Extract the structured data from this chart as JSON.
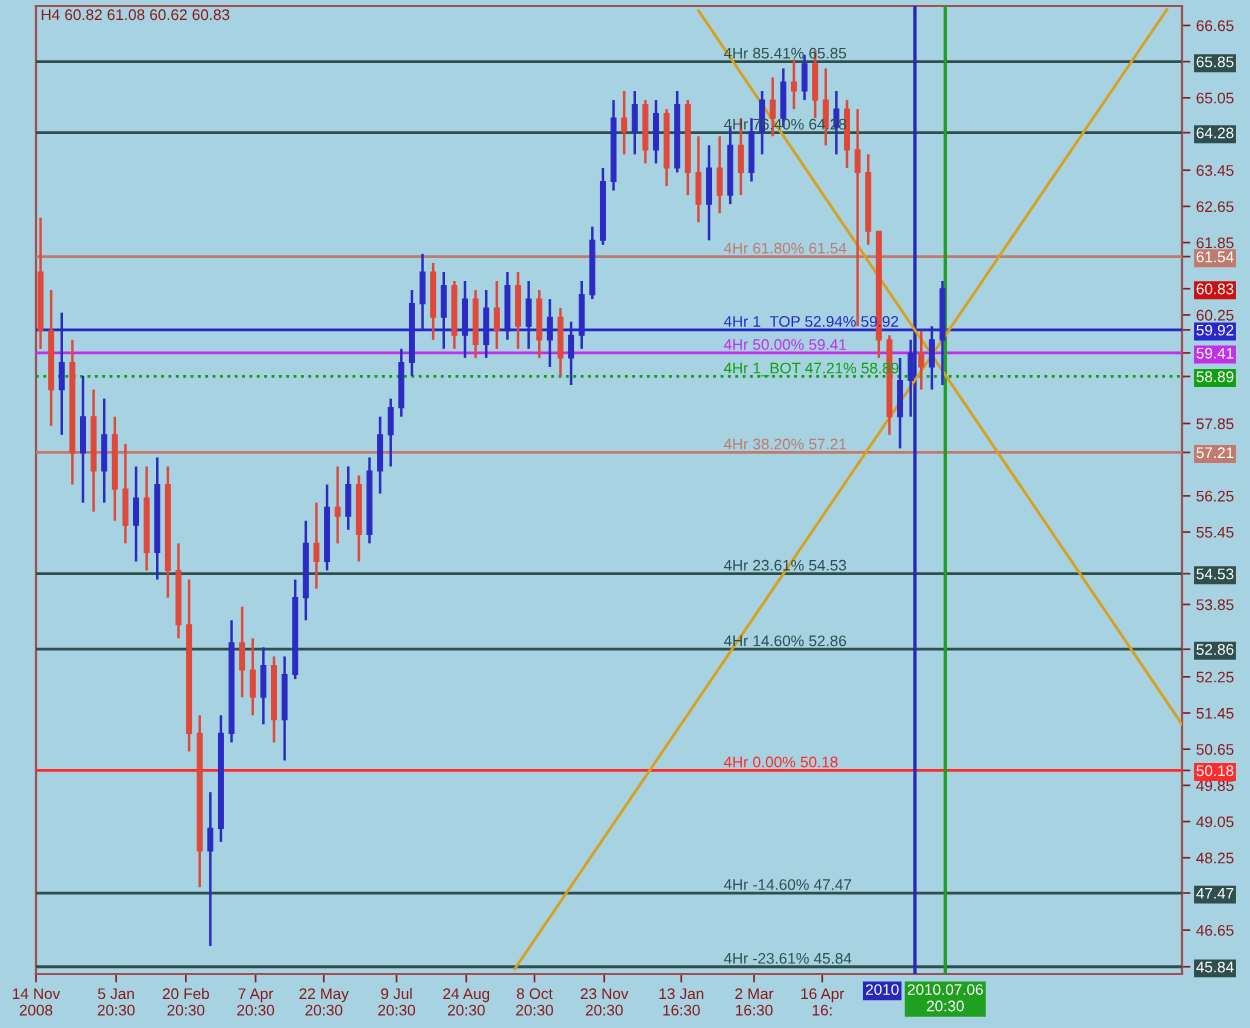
{
  "chart_data": {
    "type": "candlestick",
    "title": "H4 60.82 61.08 60.62 60.83",
    "x": [
      "2008-11-17",
      "2008-11-24",
      "2008-12-01",
      "2008-12-08",
      "2008-12-15",
      "2008-12-22",
      "2008-12-29",
      "2009-01-05",
      "2009-01-12",
      "2009-01-19",
      "2009-01-26",
      "2009-02-02",
      "2009-02-09",
      "2009-02-16",
      "2009-02-23",
      "2009-03-02",
      "2009-03-09",
      "2009-03-16",
      "2009-03-23",
      "2009-03-30",
      "2009-04-06",
      "2009-04-13",
      "2009-04-20",
      "2009-04-27",
      "2009-05-04",
      "2009-05-11",
      "2009-05-18",
      "2009-05-25",
      "2009-06-01",
      "2009-06-08",
      "2009-06-15",
      "2009-06-22",
      "2009-06-29",
      "2009-07-06",
      "2009-07-13",
      "2009-07-20",
      "2009-07-27",
      "2009-08-03",
      "2009-08-10",
      "2009-08-17",
      "2009-08-24",
      "2009-08-31",
      "2009-09-07",
      "2009-09-14",
      "2009-09-21",
      "2009-09-28",
      "2009-10-05",
      "2009-10-12",
      "2009-10-19",
      "2009-10-26",
      "2009-11-02",
      "2009-11-09",
      "2009-11-16",
      "2009-11-23",
      "2009-11-30",
      "2009-12-07",
      "2009-12-14",
      "2009-12-21",
      "2009-12-28",
      "2010-01-04",
      "2010-01-11",
      "2010-01-18",
      "2010-01-25",
      "2010-02-01",
      "2010-02-08",
      "2010-02-15",
      "2010-02-22",
      "2010-03-01",
      "2010-03-08",
      "2010-03-15",
      "2010-03-22",
      "2010-03-29",
      "2010-04-05",
      "2010-04-12",
      "2010-04-19",
      "2010-04-26",
      "2010-05-03",
      "2010-05-10",
      "2010-05-17",
      "2010-05-24",
      "2010-05-31",
      "2010-06-07",
      "2010-06-14",
      "2010-06-21",
      "2010-06-28",
      "2010-07-05"
    ],
    "ohlc": [
      [
        61.2,
        62.4,
        59.5,
        59.9
      ],
      [
        59.9,
        60.8,
        57.8,
        58.6
      ],
      [
        58.6,
        60.3,
        57.6,
        59.2
      ],
      [
        59.2,
        59.7,
        56.5,
        57.2
      ],
      [
        57.2,
        58.9,
        56.1,
        58.0
      ],
      [
        58.0,
        58.6,
        55.9,
        56.8
      ],
      [
        56.8,
        58.4,
        56.1,
        57.6
      ],
      [
        57.6,
        58.0,
        55.7,
        56.4
      ],
      [
        56.4,
        57.4,
        55.2,
        55.6
      ],
      [
        55.6,
        56.9,
        54.8,
        56.2
      ],
      [
        56.2,
        56.9,
        54.6,
        55.0
      ],
      [
        55.0,
        57.1,
        54.4,
        56.5
      ],
      [
        56.5,
        56.9,
        54.0,
        54.6
      ],
      [
        54.6,
        55.2,
        53.1,
        53.4
      ],
      [
        53.4,
        54.4,
        50.6,
        51.0
      ],
      [
        51.0,
        51.4,
        47.6,
        48.4
      ],
      [
        48.4,
        49.7,
        46.3,
        48.9
      ],
      [
        48.9,
        51.4,
        48.6,
        51.0
      ],
      [
        51.0,
        53.5,
        50.8,
        53.0
      ],
      [
        53.0,
        53.8,
        51.8,
        52.4
      ],
      [
        52.4,
        53.1,
        51.4,
        51.8
      ],
      [
        51.8,
        52.9,
        51.2,
        52.5
      ],
      [
        52.5,
        52.7,
        50.8,
        51.3
      ],
      [
        51.3,
        52.7,
        50.4,
        52.3
      ],
      [
        52.3,
        54.4,
        52.2,
        54.0
      ],
      [
        54.0,
        55.7,
        53.5,
        55.2
      ],
      [
        55.2,
        56.1,
        54.2,
        54.8
      ],
      [
        54.8,
        56.5,
        54.6,
        56.0
      ],
      [
        56.0,
        56.9,
        55.2,
        55.8
      ],
      [
        55.8,
        56.9,
        55.5,
        56.5
      ],
      [
        56.5,
        56.7,
        54.8,
        55.4
      ],
      [
        55.4,
        57.1,
        55.2,
        56.8
      ],
      [
        56.8,
        58.0,
        56.3,
        57.6
      ],
      [
        57.6,
        58.4,
        56.9,
        58.2
      ],
      [
        58.2,
        59.5,
        58.0,
        59.2
      ],
      [
        59.2,
        60.8,
        58.9,
        60.5
      ],
      [
        60.5,
        61.6,
        59.9,
        61.2
      ],
      [
        61.2,
        61.4,
        59.7,
        60.2
      ],
      [
        60.2,
        61.2,
        59.5,
        60.9
      ],
      [
        60.9,
        61.0,
        59.5,
        59.8
      ],
      [
        59.8,
        61.0,
        59.3,
        60.6
      ],
      [
        60.6,
        60.8,
        59.3,
        59.6
      ],
      [
        59.6,
        60.8,
        59.3,
        60.4
      ],
      [
        60.4,
        61.0,
        59.5,
        59.9
      ],
      [
        59.9,
        61.2,
        59.7,
        60.9
      ],
      [
        60.9,
        61.2,
        59.5,
        60.0
      ],
      [
        60.0,
        61.0,
        59.5,
        60.6
      ],
      [
        60.6,
        60.8,
        59.3,
        59.7
      ],
      [
        59.7,
        60.6,
        59.1,
        60.2
      ],
      [
        60.2,
        60.4,
        58.9,
        59.3
      ],
      [
        59.3,
        60.1,
        58.7,
        59.8
      ],
      [
        59.8,
        61.0,
        59.5,
        60.7
      ],
      [
        60.7,
        62.2,
        60.6,
        61.9
      ],
      [
        61.9,
        63.5,
        61.8,
        63.2
      ],
      [
        63.2,
        65.0,
        63.0,
        64.6
      ],
      [
        64.6,
        65.2,
        63.8,
        64.3
      ],
      [
        64.3,
        65.2,
        63.8,
        64.9
      ],
      [
        64.9,
        65.0,
        63.6,
        63.9
      ],
      [
        63.9,
        65.0,
        63.6,
        64.7
      ],
      [
        64.7,
        64.8,
        63.1,
        63.5
      ],
      [
        63.5,
        65.2,
        63.4,
        64.9
      ],
      [
        64.9,
        65.0,
        62.9,
        63.4
      ],
      [
        63.4,
        64.2,
        62.3,
        62.7
      ],
      [
        62.7,
        64.0,
        61.9,
        63.5
      ],
      [
        63.5,
        64.2,
        62.5,
        62.9
      ],
      [
        62.9,
        64.4,
        62.7,
        64.0
      ],
      [
        64.0,
        64.6,
        62.9,
        63.4
      ],
      [
        63.4,
        64.6,
        63.2,
        64.3
      ],
      [
        64.3,
        65.2,
        63.8,
        65.0
      ],
      [
        65.0,
        65.5,
        64.2,
        64.6
      ],
      [
        64.6,
        65.7,
        64.4,
        65.4
      ],
      [
        65.4,
        65.9,
        64.8,
        65.2
      ],
      [
        65.2,
        66.0,
        65.0,
        65.8
      ],
      [
        65.8,
        66.1,
        64.6,
        65.0
      ],
      [
        65.0,
        65.7,
        64.0,
        64.4
      ],
      [
        64.4,
        65.2,
        63.8,
        64.8
      ],
      [
        64.8,
        65.0,
        63.5,
        63.9
      ],
      [
        63.9,
        64.8,
        60.0,
        63.4
      ],
      [
        63.4,
        63.8,
        61.8,
        62.1
      ],
      [
        62.1,
        62.1,
        59.3,
        59.7
      ],
      [
        59.7,
        59.8,
        57.6,
        58.0
      ],
      [
        58.0,
        59.3,
        57.3,
        58.8
      ],
      [
        58.8,
        59.7,
        58.0,
        59.4
      ],
      [
        59.4,
        59.9,
        58.6,
        59.1
      ],
      [
        59.1,
        60.0,
        58.6,
        59.7
      ],
      [
        59.7,
        61.0,
        58.7,
        60.83
      ]
    ],
    "colors": [
      "#e0483a",
      "#e0483a",
      "#2b2bc4",
      "#e0483a",
      "#2b2bc4",
      "#e0483a",
      "#2b2bc4",
      "#e0483a",
      "#e0483a",
      "#2b2bc4",
      "#e0483a",
      "#2b2bc4",
      "#e0483a",
      "#e0483a",
      "#e0483a",
      "#e0483a",
      "#2b2bc4",
      "#2b2bc4",
      "#2b2bc4",
      "#e0483a",
      "#e0483a",
      "#2b2bc4",
      "#e0483a",
      "#2b2bc4",
      "#2b2bc4",
      "#2b2bc4",
      "#e0483a",
      "#2b2bc4",
      "#e0483a",
      "#2b2bc4",
      "#e0483a",
      "#2b2bc4",
      "#2b2bc4",
      "#2b2bc4",
      "#2b2bc4",
      "#2b2bc4",
      "#2b2bc4",
      "#e0483a",
      "#2b2bc4",
      "#e0483a",
      "#2b2bc4",
      "#e0483a",
      "#2b2bc4",
      "#e0483a",
      "#2b2bc4",
      "#e0483a",
      "#2b2bc4",
      "#e0483a",
      "#2b2bc4",
      "#e0483a",
      "#2b2bc4",
      "#2b2bc4",
      "#2b2bc4",
      "#2b2bc4",
      "#2b2bc4",
      "#e0483a",
      "#2b2bc4",
      "#e0483a",
      "#2b2bc4",
      "#e0483a",
      "#2b2bc4",
      "#e0483a",
      "#e0483a",
      "#2b2bc4",
      "#e0483a",
      "#2b2bc4",
      "#e0483a",
      "#2b2bc4",
      "#2b2bc4",
      "#e0483a",
      "#2b2bc4",
      "#e0483a",
      "#2b2bc4",
      "#e0483a",
      "#e0483a",
      "#2b2bc4",
      "#e0483a",
      "#e0483a",
      "#e0483a",
      "#e0483a",
      "#e0483a",
      "#2b2bc4",
      "#2b2bc4",
      "#e0483a",
      "#2b2bc4",
      "#2b2bc4"
    ],
    "series": [
      {
        "type": "line",
        "color": "#d9a01e",
        "x": [
          "2010-01-25",
          "2010-12-10"
        ],
        "values": [
          66.98,
          51.2
        ]
      },
      {
        "type": "line",
        "color": "#d9a01e",
        "x": [
          "2009-09-26",
          "2010-11-30"
        ],
        "values": [
          45.8,
          67.0
        ]
      }
    ],
    "xlim": [
      "2008-11-14",
      "2010-12-10"
    ],
    "xticks": [
      {
        "value": "2008-11-14",
        "label": "14 Nov 2008"
      },
      {
        "value": "2009-01-05T20:30",
        "label": "5 Jan 20:30"
      },
      {
        "value": "2009-02-20T20:30",
        "label": "20 Feb 20:30"
      },
      {
        "value": "2009-04-07T20:30",
        "label": "7 Apr 20:30"
      },
      {
        "value": "2009-05-22T20:30",
        "label": "22 May 20:30"
      },
      {
        "value": "2009-07-09T20:30",
        "label": "9 Jul 20:30"
      },
      {
        "value": "2009-08-24T20:30",
        "label": "24 Aug 20:30"
      },
      {
        "value": "2009-10-08T20:30",
        "label": "8 Oct 20:30"
      },
      {
        "value": "2009-11-23T20:30",
        "label": "23 Nov 20:30"
      },
      {
        "value": "2010-01-13T16:30",
        "label": "13 Jan 16:30"
      },
      {
        "value": "2010-03-02T16:30",
        "label": "2 Mar 16:30"
      },
      {
        "value": "2010-04-16T16:30",
        "label": "16 Apr 16:"
      }
    ],
    "ylim": [
      45.68,
      67.08
    ],
    "yticks": [
      45.84,
      46.65,
      47.47,
      48.25,
      49.05,
      49.85,
      50.18,
      50.65,
      51.45,
      52.25,
      52.86,
      53.85,
      54.53,
      55.45,
      56.25,
      57.21,
      57.85,
      58.89,
      59.41,
      59.92,
      60.25,
      60.83,
      61.54,
      61.85,
      62.65,
      63.45,
      64.28,
      65.05,
      65.85,
      66.65
    ],
    "ref_lines": [
      {
        "axis": "y",
        "value": 65.85,
        "label": "4Hr 85.41% 65.85",
        "color": "#2f4f4f"
      },
      {
        "axis": "y",
        "value": 64.28,
        "label": "4Hr 76.40% 64.28",
        "color": "#2f4f4f"
      },
      {
        "axis": "y",
        "value": 61.54,
        "label": "4Hr 61.80% 61.54",
        "color": "#c07a6e"
      },
      {
        "axis": "y",
        "value": 59.92,
        "label": "4Hr 1_TOP 52.94% 59.92",
        "color": "#2828c8"
      },
      {
        "axis": "y",
        "value": 59.41,
        "label": "4Hr 50.00% 59.41",
        "color": "#c030e8"
      },
      {
        "axis": "y",
        "value": 58.89,
        "label": "4Hr 1_BOT 47.21% 58.89",
        "color": "#12a012",
        "line_style": "dotted"
      },
      {
        "axis": "y",
        "value": 57.21,
        "label": "4Hr 38.20% 57.21",
        "color": "#c07a6e"
      },
      {
        "axis": "y",
        "value": 54.53,
        "label": "4Hr 23.61% 54.53",
        "color": "#2f4f4f"
      },
      {
        "axis": "y",
        "value": 52.86,
        "label": "4Hr 14.60% 52.86",
        "color": "#2f4f4f"
      },
      {
        "axis": "y",
        "value": 50.18,
        "label": "4Hr 0.00% 50.18",
        "color": "#ff2a2a"
      },
      {
        "axis": "y",
        "value": 47.47,
        "label": "4Hr -14.60% 47.47",
        "color": "#2f4f4f"
      },
      {
        "axis": "y",
        "value": 45.84,
        "label": "4Hr -23.61% 45.84",
        "color": "#2f4f4f"
      },
      {
        "axis": "x",
        "value": "2010-06-16T20:00",
        "label": "2010",
        "color": "#2828b8"
      },
      {
        "axis": "x",
        "value": "2010-07-06T20:30",
        "label": "2010.07.06 20:30",
        "color": "#20a020"
      }
    ]
  }
}
